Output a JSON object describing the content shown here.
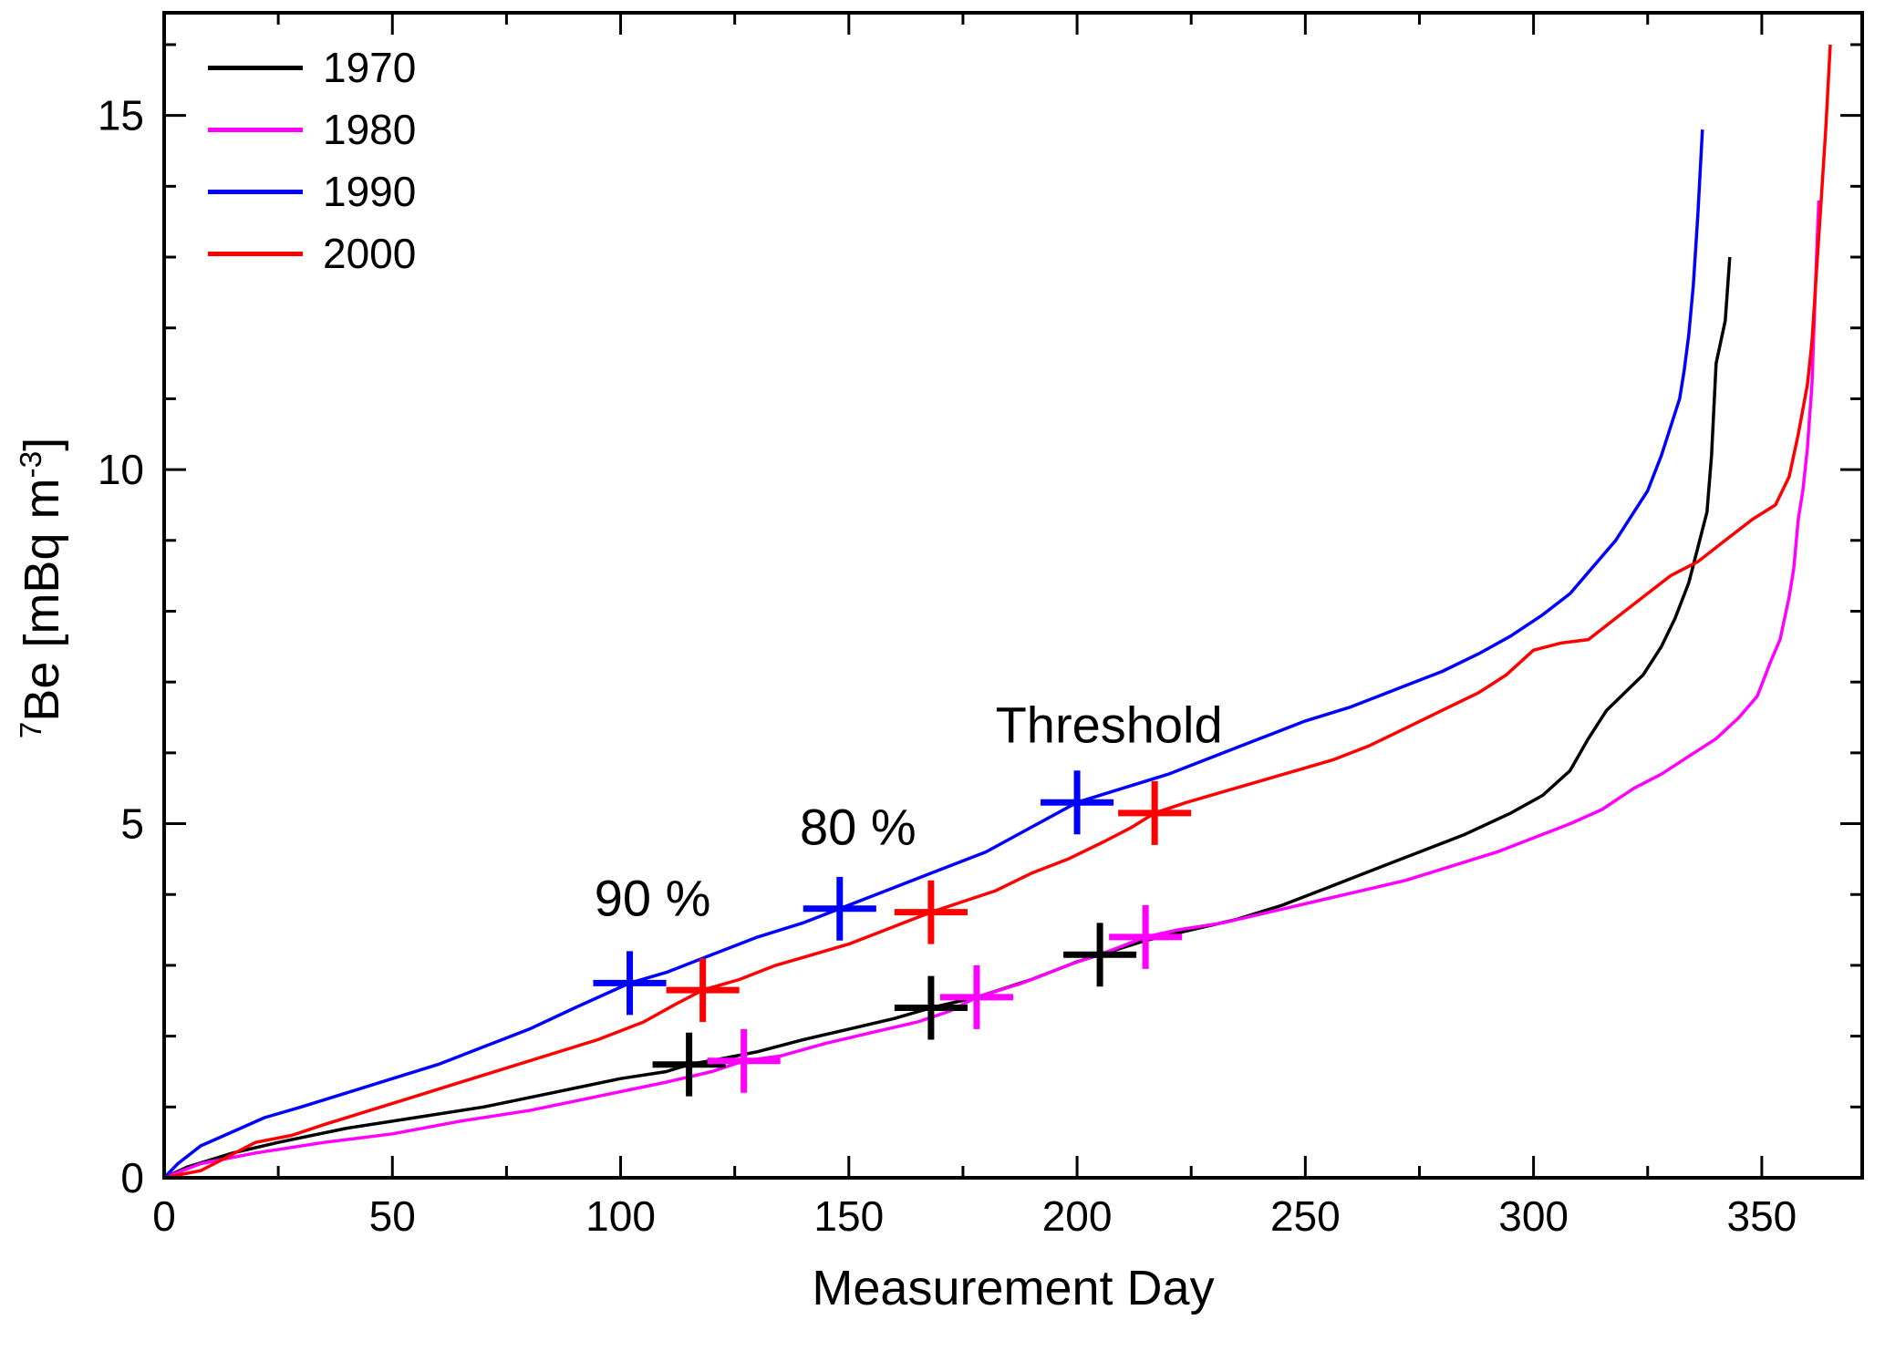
{
  "chart_data": {
    "type": "line",
    "title": "",
    "xlabel": "Measurement Day",
    "ylabel": "7Be [mBq m-3]",
    "ylabel_parts": {
      "sup1": "7",
      "main": "Be [mBq m",
      "sup2": "-3",
      "end": "]"
    },
    "xlim": [
      0,
      372
    ],
    "ylim": [
      0,
      16.45
    ],
    "xticks": [
      0,
      50,
      100,
      150,
      200,
      250,
      300,
      350
    ],
    "xminor_step": 25,
    "yticks": [
      0,
      5,
      10,
      15
    ],
    "yminor_step": 1,
    "grid": false,
    "legend_position": "top-left",
    "series": [
      {
        "name": "1970",
        "color": "#000000",
        "points": [
          [
            0,
            0
          ],
          [
            5,
            0.15
          ],
          [
            15,
            0.35
          ],
          [
            25,
            0.5
          ],
          [
            40,
            0.7
          ],
          [
            55,
            0.85
          ],
          [
            70,
            1.0
          ],
          [
            85,
            1.2
          ],
          [
            100,
            1.4
          ],
          [
            110,
            1.5
          ],
          [
            115,
            1.6
          ],
          [
            122,
            1.68
          ],
          [
            130,
            1.78
          ],
          [
            140,
            1.95
          ],
          [
            150,
            2.1
          ],
          [
            160,
            2.25
          ],
          [
            168,
            2.4
          ],
          [
            178,
            2.55
          ],
          [
            190,
            2.8
          ],
          [
            200,
            3.05
          ],
          [
            205,
            3.15
          ],
          [
            215,
            3.35
          ],
          [
            225,
            3.5
          ],
          [
            235,
            3.65
          ],
          [
            245,
            3.85
          ],
          [
            255,
            4.1
          ],
          [
            265,
            4.35
          ],
          [
            275,
            4.6
          ],
          [
            285,
            4.85
          ],
          [
            295,
            5.15
          ],
          [
            302,
            5.4
          ],
          [
            308,
            5.75
          ],
          [
            312,
            6.2
          ],
          [
            316,
            6.6
          ],
          [
            320,
            6.85
          ],
          [
            324,
            7.1
          ],
          [
            328,
            7.5
          ],
          [
            331,
            7.9
          ],
          [
            334,
            8.4
          ],
          [
            336,
            8.9
          ],
          [
            338,
            9.4
          ],
          [
            339,
            10.2
          ],
          [
            340,
            11.5
          ],
          [
            341,
            11.8
          ],
          [
            342,
            12.1
          ],
          [
            343,
            13.0
          ]
        ]
      },
      {
        "name": "1980",
        "color": "#ff00ff",
        "points": [
          [
            0,
            0
          ],
          [
            8,
            0.2
          ],
          [
            20,
            0.35
          ],
          [
            35,
            0.5
          ],
          [
            50,
            0.62
          ],
          [
            65,
            0.8
          ],
          [
            80,
            0.95
          ],
          [
            95,
            1.15
          ],
          [
            110,
            1.35
          ],
          [
            120,
            1.5
          ],
          [
            127,
            1.65
          ],
          [
            135,
            1.72
          ],
          [
            145,
            1.9
          ],
          [
            155,
            2.05
          ],
          [
            165,
            2.2
          ],
          [
            172,
            2.35
          ],
          [
            178,
            2.55
          ],
          [
            188,
            2.75
          ],
          [
            198,
            3.0
          ],
          [
            207,
            3.2
          ],
          [
            215,
            3.4
          ],
          [
            222,
            3.5
          ],
          [
            232,
            3.6
          ],
          [
            242,
            3.75
          ],
          [
            252,
            3.9
          ],
          [
            262,
            4.05
          ],
          [
            272,
            4.2
          ],
          [
            282,
            4.4
          ],
          [
            292,
            4.6
          ],
          [
            300,
            4.8
          ],
          [
            308,
            5.0
          ],
          [
            315,
            5.2
          ],
          [
            322,
            5.5
          ],
          [
            328,
            5.7
          ],
          [
            334,
            5.95
          ],
          [
            340,
            6.2
          ],
          [
            345,
            6.5
          ],
          [
            349,
            6.8
          ],
          [
            352,
            7.3
          ],
          [
            354,
            7.6
          ],
          [
            356,
            8.2
          ],
          [
            357,
            8.6
          ],
          [
            358,
            9.3
          ],
          [
            359,
            9.7
          ],
          [
            360,
            10.3
          ],
          [
            361,
            11.2
          ],
          [
            362,
            13.0
          ],
          [
            362.5,
            13.8
          ]
        ]
      },
      {
        "name": "1990",
        "color": "#0000ff",
        "points": [
          [
            0,
            0
          ],
          [
            3,
            0.2
          ],
          [
            8,
            0.45
          ],
          [
            15,
            0.65
          ],
          [
            22,
            0.85
          ],
          [
            30,
            1.0
          ],
          [
            40,
            1.2
          ],
          [
            50,
            1.4
          ],
          [
            60,
            1.6
          ],
          [
            70,
            1.85
          ],
          [
            80,
            2.1
          ],
          [
            90,
            2.4
          ],
          [
            102,
            2.75
          ],
          [
            110,
            2.9
          ],
          [
            120,
            3.15
          ],
          [
            130,
            3.4
          ],
          [
            140,
            3.6
          ],
          [
            148,
            3.8
          ],
          [
            158,
            4.05
          ],
          [
            170,
            4.35
          ],
          [
            180,
            4.6
          ],
          [
            190,
            4.95
          ],
          [
            200,
            5.3
          ],
          [
            210,
            5.5
          ],
          [
            220,
            5.7
          ],
          [
            230,
            5.95
          ],
          [
            240,
            6.2
          ],
          [
            250,
            6.45
          ],
          [
            260,
            6.65
          ],
          [
            270,
            6.9
          ],
          [
            280,
            7.15
          ],
          [
            288,
            7.4
          ],
          [
            295,
            7.65
          ],
          [
            302,
            7.95
          ],
          [
            308,
            8.25
          ],
          [
            314,
            8.7
          ],
          [
            318,
            9.0
          ],
          [
            322,
            9.4
          ],
          [
            325,
            9.7
          ],
          [
            328,
            10.2
          ],
          [
            330,
            10.6
          ],
          [
            332,
            11.0
          ],
          [
            333,
            11.4
          ],
          [
            334,
            11.9
          ],
          [
            335,
            12.6
          ],
          [
            336,
            13.6
          ],
          [
            337,
            14.8
          ]
        ]
      },
      {
        "name": "2000",
        "color": "#ff0000",
        "points": [
          [
            0,
            0
          ],
          [
            8,
            0.1
          ],
          [
            14,
            0.3
          ],
          [
            20,
            0.5
          ],
          [
            28,
            0.6
          ],
          [
            35,
            0.75
          ],
          [
            45,
            0.95
          ],
          [
            55,
            1.15
          ],
          [
            65,
            1.35
          ],
          [
            75,
            1.55
          ],
          [
            85,
            1.75
          ],
          [
            95,
            1.95
          ],
          [
            105,
            2.2
          ],
          [
            112,
            2.45
          ],
          [
            118,
            2.65
          ],
          [
            126,
            2.8
          ],
          [
            134,
            3.0
          ],
          [
            142,
            3.15
          ],
          [
            150,
            3.3
          ],
          [
            158,
            3.5
          ],
          [
            164,
            3.65
          ],
          [
            168,
            3.75
          ],
          [
            175,
            3.9
          ],
          [
            182,
            4.05
          ],
          [
            190,
            4.3
          ],
          [
            198,
            4.5
          ],
          [
            206,
            4.75
          ],
          [
            212,
            4.95
          ],
          [
            217,
            5.15
          ],
          [
            224,
            5.3
          ],
          [
            232,
            5.45
          ],
          [
            240,
            5.6
          ],
          [
            248,
            5.75
          ],
          [
            256,
            5.9
          ],
          [
            264,
            6.1
          ],
          [
            272,
            6.35
          ],
          [
            280,
            6.6
          ],
          [
            288,
            6.85
          ],
          [
            294,
            7.1
          ],
          [
            300,
            7.45
          ],
          [
            306,
            7.55
          ],
          [
            312,
            7.6
          ],
          [
            318,
            7.9
          ],
          [
            324,
            8.2
          ],
          [
            330,
            8.5
          ],
          [
            336,
            8.7
          ],
          [
            342,
            9.0
          ],
          [
            348,
            9.3
          ],
          [
            353,
            9.5
          ],
          [
            356,
            9.9
          ],
          [
            358,
            10.5
          ],
          [
            360,
            11.2
          ],
          [
            361,
            11.8
          ],
          [
            362,
            12.8
          ],
          [
            363,
            13.8
          ],
          [
            364,
            14.8
          ],
          [
            365,
            16.0
          ]
        ]
      }
    ],
    "markers": [
      {
        "group": "90%",
        "series": "1990",
        "color": "#0000ff",
        "x": 102,
        "y": 2.75,
        "xerr": 8,
        "yerr": 0.45
      },
      {
        "group": "90%",
        "series": "2000",
        "color": "#ff0000",
        "x": 118,
        "y": 2.65,
        "xerr": 8,
        "yerr": 0.45
      },
      {
        "group": "90%",
        "series": "1970",
        "color": "#000000",
        "x": 115,
        "y": 1.6,
        "xerr": 8,
        "yerr": 0.45
      },
      {
        "group": "90%",
        "series": "1980",
        "color": "#ff00ff",
        "x": 127,
        "y": 1.65,
        "xerr": 8,
        "yerr": 0.45
      },
      {
        "group": "80%",
        "series": "1990",
        "color": "#0000ff",
        "x": 148,
        "y": 3.8,
        "xerr": 8,
        "yerr": 0.45
      },
      {
        "group": "80%",
        "series": "2000",
        "color": "#ff0000",
        "x": 168,
        "y": 3.75,
        "xerr": 8,
        "yerr": 0.45
      },
      {
        "group": "80%",
        "series": "1970",
        "color": "#000000",
        "x": 168,
        "y": 2.4,
        "xerr": 8,
        "yerr": 0.45
      },
      {
        "group": "80%",
        "series": "1980",
        "color": "#ff00ff",
        "x": 178,
        "y": 2.55,
        "xerr": 8,
        "yerr": 0.45
      },
      {
        "group": "threshold",
        "series": "1990",
        "color": "#0000ff",
        "x": 200,
        "y": 5.3,
        "xerr": 8,
        "yerr": 0.45
      },
      {
        "group": "threshold",
        "series": "2000",
        "color": "#ff0000",
        "x": 217,
        "y": 5.15,
        "xerr": 8,
        "yerr": 0.45
      },
      {
        "group": "threshold",
        "series": "1970",
        "color": "#000000",
        "x": 205,
        "y": 3.15,
        "xerr": 8,
        "yerr": 0.45
      },
      {
        "group": "threshold",
        "series": "1980",
        "color": "#ff00ff",
        "x": 215,
        "y": 3.4,
        "xerr": 8,
        "yerr": 0.45
      }
    ],
    "annotations": [
      {
        "text": "90 %",
        "x": 107,
        "y": 3.95
      },
      {
        "text": "80 %",
        "x": 152,
        "y": 4.95
      },
      {
        "text": "Threshold",
        "x": 207,
        "y": 6.4
      }
    ]
  }
}
